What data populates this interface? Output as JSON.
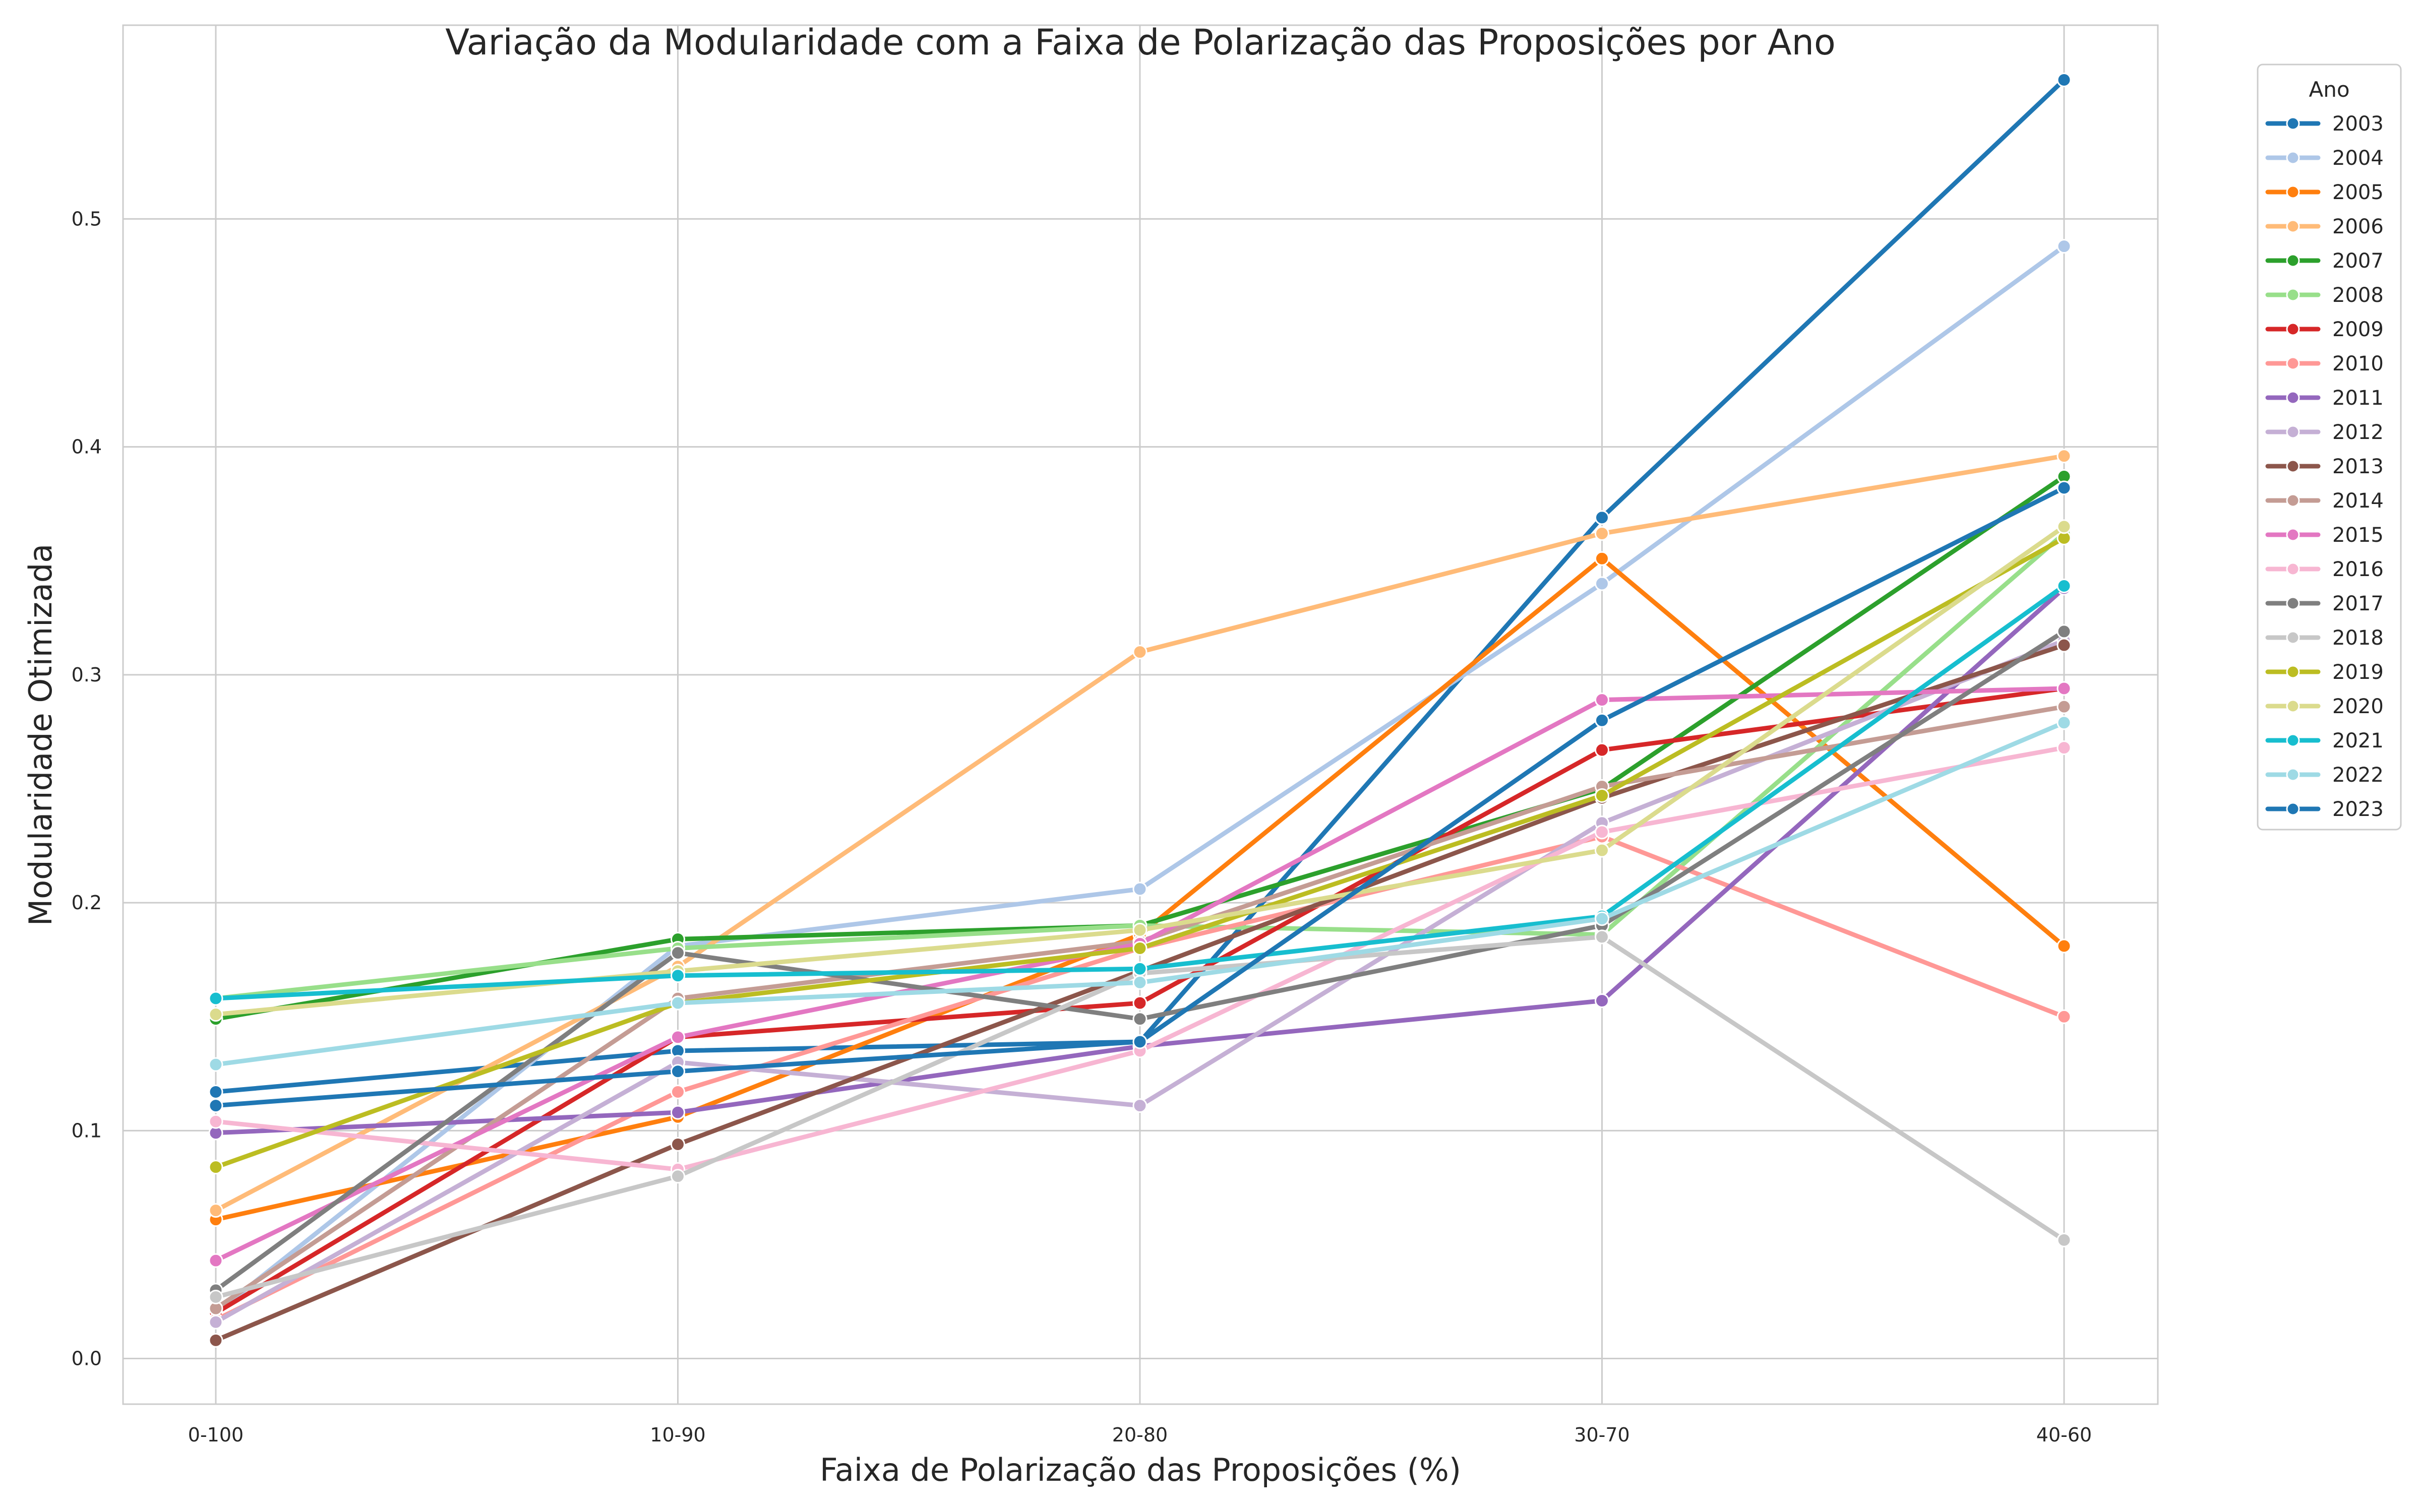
{
  "chart_data": {
    "type": "line",
    "title": "Variação da Modularidade com a Faixa de Polarização das Proposições por Ano",
    "xlabel": "Faixa de Polarização das Proposições (%)",
    "ylabel": "Modularidade Otimizada",
    "categories": [
      "0-100",
      "10-90",
      "20-80",
      "30-70",
      "40-60"
    ],
    "ylim": [
      -0.02,
      0.585
    ],
    "yticks": [
      0.0,
      0.1,
      0.2,
      0.3,
      0.4,
      0.5
    ],
    "ytick_labels": [
      "0.0",
      "0.1",
      "0.2",
      "0.3",
      "0.4",
      "0.5"
    ],
    "grid": true,
    "legend": {
      "title": "Ano",
      "placement": "outside-right-top"
    },
    "series": [
      {
        "name": "2003",
        "color": "#1f77b4",
        "values": [
          0.117,
          0.135,
          0.139,
          0.369,
          0.561
        ]
      },
      {
        "name": "2004",
        "color": "#aec7e8",
        "values": [
          0.02,
          0.181,
          0.206,
          0.34,
          0.488
        ]
      },
      {
        "name": "2005",
        "color": "#ff7f0e",
        "values": [
          0.061,
          0.106,
          0.186,
          0.351,
          0.181
        ]
      },
      {
        "name": "2006",
        "color": "#ffbb78",
        "values": [
          0.065,
          0.172,
          0.31,
          0.362,
          0.396
        ]
      },
      {
        "name": "2007",
        "color": "#2ca02c",
        "values": [
          0.149,
          0.184,
          0.19,
          0.25,
          0.387
        ]
      },
      {
        "name": "2008",
        "color": "#98df8a",
        "values": [
          0.158,
          0.18,
          0.19,
          0.186,
          0.362
        ]
      },
      {
        "name": "2009",
        "color": "#d62728",
        "values": [
          0.02,
          0.141,
          0.156,
          0.267,
          0.294
        ]
      },
      {
        "name": "2010",
        "color": "#ff9896",
        "values": [
          0.017,
          0.117,
          0.18,
          0.229,
          0.15
        ]
      },
      {
        "name": "2011",
        "color": "#9467bd",
        "values": [
          0.099,
          0.108,
          0.137,
          0.157,
          0.338
        ]
      },
      {
        "name": "2012",
        "color": "#c5b0d5",
        "values": [
          0.016,
          0.13,
          0.111,
          0.235,
          0.315
        ]
      },
      {
        "name": "2013",
        "color": "#8c564b",
        "values": [
          0.008,
          0.094,
          0.17,
          0.246,
          0.313
        ]
      },
      {
        "name": "2014",
        "color": "#c49c94",
        "values": [
          0.022,
          0.158,
          0.183,
          0.251,
          0.286
        ]
      },
      {
        "name": "2015",
        "color": "#e377c2",
        "values": [
          0.043,
          0.141,
          0.182,
          0.289,
          0.294
        ]
      },
      {
        "name": "2016",
        "color": "#f7b6d2",
        "values": [
          0.104,
          0.083,
          0.135,
          0.231,
          0.268
        ]
      },
      {
        "name": "2017",
        "color": "#7f7f7f",
        "values": [
          0.03,
          0.178,
          0.149,
          0.19,
          0.319
        ]
      },
      {
        "name": "2018",
        "color": "#c7c7c7",
        "values": [
          0.027,
          0.08,
          0.169,
          0.185,
          0.052
        ]
      },
      {
        "name": "2019",
        "color": "#bcbd22",
        "values": [
          0.084,
          0.156,
          0.18,
          0.247,
          0.36
        ]
      },
      {
        "name": "2020",
        "color": "#dbdb8d",
        "values": [
          0.151,
          0.17,
          0.188,
          0.223,
          0.365
        ]
      },
      {
        "name": "2021",
        "color": "#17becf",
        "values": [
          0.158,
          0.168,
          0.171,
          0.194,
          0.339
        ]
      },
      {
        "name": "2022",
        "color": "#9edae5",
        "values": [
          0.129,
          0.156,
          0.165,
          0.193,
          0.279
        ]
      },
      {
        "name": "2023",
        "color": "#1f77b4",
        "values": [
          0.111,
          0.126,
          0.139,
          0.28,
          0.382
        ]
      }
    ]
  }
}
